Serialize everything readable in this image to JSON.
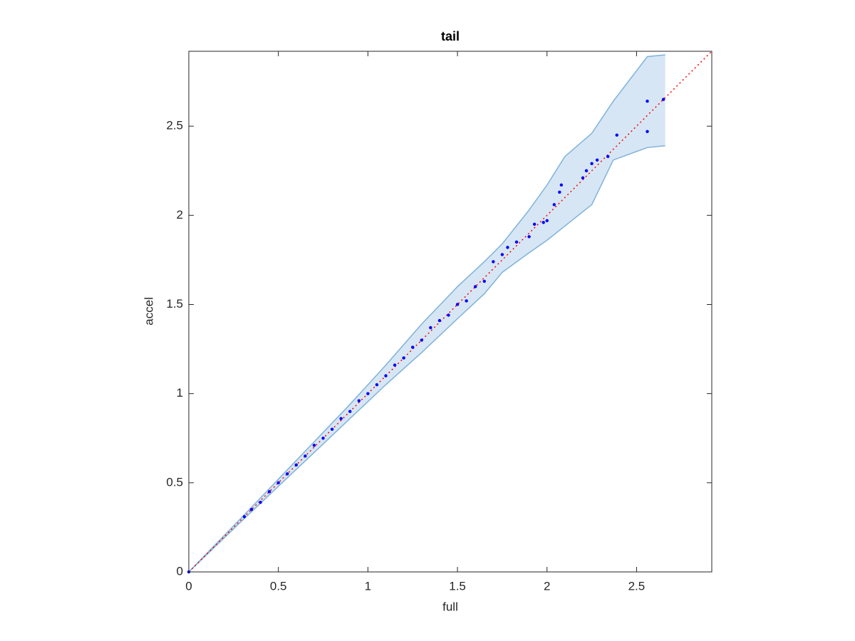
{
  "chart_data": {
    "type": "scatter",
    "title": "tail",
    "x_label": "full",
    "y_label": "accel",
    "xlim": [
      0,
      2.92
    ],
    "ylim": [
      0,
      2.92
    ],
    "xticks": [
      0,
      0.5,
      1,
      1.5,
      2,
      2.5
    ],
    "yticks": [
      0,
      0.5,
      1,
      1.5,
      2,
      2.5
    ],
    "series": [
      {
        "color": "#0000ff",
        "x": [
          0,
          0.31,
          0.35,
          0.4,
          0.45,
          0.5,
          0.55,
          0.6,
          0.65,
          0.7,
          0.75,
          0.8,
          0.85,
          0.9,
          0.95,
          1.0,
          1.05,
          1.1,
          1.15,
          1.2,
          1.25,
          1.3,
          1.35,
          1.4,
          1.45,
          1.5,
          1.55,
          1.6,
          1.65,
          1.7,
          1.75,
          1.78,
          1.83,
          1.9,
          1.93,
          1.98,
          2.0,
          2.04,
          2.07,
          2.08,
          2.2,
          2.22,
          2.25,
          2.28,
          2.34,
          2.39,
          2.56,
          2.56,
          2.65
        ],
        "y": [
          0,
          0.31,
          0.35,
          0.39,
          0.45,
          0.5,
          0.55,
          0.6,
          0.65,
          0.71,
          0.75,
          0.8,
          0.86,
          0.9,
          0.96,
          1.0,
          1.05,
          1.1,
          1.16,
          1.2,
          1.26,
          1.3,
          1.37,
          1.41,
          1.44,
          1.5,
          1.52,
          1.6,
          1.63,
          1.74,
          1.78,
          1.82,
          1.85,
          1.88,
          1.95,
          1.96,
          1.97,
          2.06,
          2.13,
          2.17,
          2.21,
          2.25,
          2.29,
          2.31,
          2.33,
          2.45,
          2.64,
          2.47,
          2.65
        ]
      }
    ],
    "band": {
      "color": "#d6e6f4",
      "edge_color": "#7fb2d9",
      "x": [
        0,
        0.3,
        0.5,
        0.7,
        0.9,
        1.1,
        1.3,
        1.5,
        1.65,
        1.75,
        1.9,
        2.0,
        2.1,
        2.25,
        2.37,
        2.56,
        2.66
      ],
      "upper": [
        0,
        0.31,
        0.52,
        0.73,
        0.94,
        1.16,
        1.39,
        1.6,
        1.74,
        1.84,
        2.03,
        2.17,
        2.33,
        2.46,
        2.64,
        2.89,
        2.9
      ],
      "lower": [
        0,
        0.29,
        0.48,
        0.67,
        0.86,
        1.05,
        1.23,
        1.42,
        1.56,
        1.68,
        1.79,
        1.86,
        1.94,
        2.06,
        2.31,
        2.38,
        2.39
      ]
    },
    "reference_line": {
      "x": [
        0,
        2.92
      ],
      "y": [
        0,
        2.92
      ],
      "color": "#ff0000",
      "style": "dotted"
    }
  }
}
